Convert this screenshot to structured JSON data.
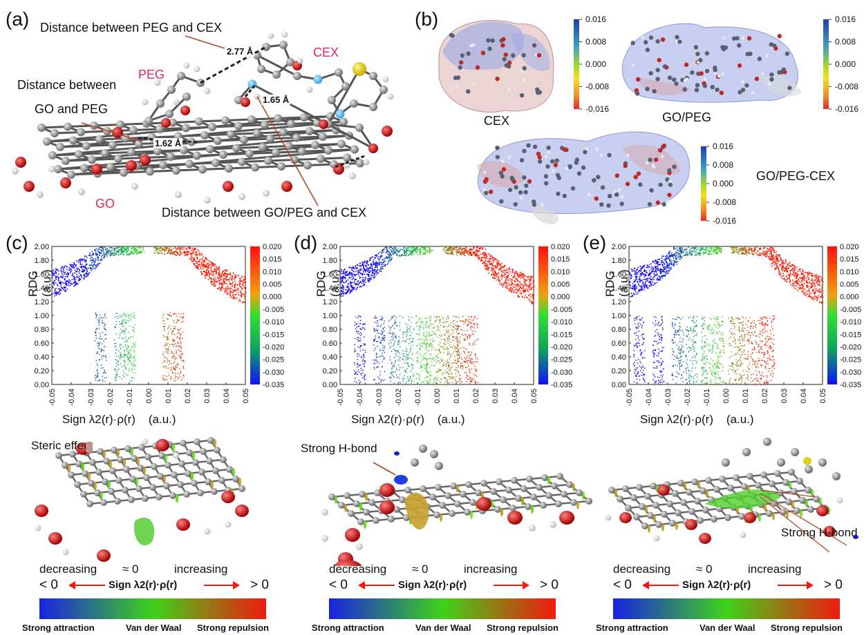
{
  "panel_a": {
    "letter": "(a)",
    "label_peg_cex": "Distance between PEG and CEX",
    "label_go_peg_1": "Distance between",
    "label_go_peg_2": "GO and PEG",
    "label_gopeg_cex": "Distance between GO/PEG and CEX",
    "mol_peg": "PEG",
    "mol_cex": "CEX",
    "mol_go": "GO",
    "d1": "2.77 Å",
    "d2": "1.65 Å",
    "d3": "1.62 Å"
  },
  "panel_b": {
    "letter": "(b)",
    "cex": "CEX",
    "gopeg": "GO/PEG",
    "gopegcex": "GO/PEG-CEX",
    "esp_ticks": [
      "0.016",
      "0.008",
      "0.000",
      "-0.008",
      "-0.016"
    ]
  },
  "rdg": {
    "ylabel": "RDG (a.u.)",
    "xlabel": "Sign λ2(r)·ρ(r)    (a.u.)",
    "yticks": [
      "2.00",
      "1.80",
      "1.60",
      "1.40",
      "1.20",
      "1.00",
      "0.80",
      "0.60",
      "0.40",
      "0.20",
      "0.00"
    ],
    "xticks": [
      "-0.05",
      "-0.04",
      "-0.03",
      "-0.02",
      "-0.01",
      "0.00",
      "0.01",
      "0.02",
      "0.03",
      "0.04",
      "0.05"
    ],
    "cbar_ticks": [
      "0.020",
      "0.015",
      "0.010",
      "0.005",
      "0.000",
      "-0.005",
      "-0.010",
      "-0.015",
      "-0.020",
      "-0.025",
      "-0.030",
      "-0.035"
    ],
    "panels": [
      {
        "letter": "(c)"
      },
      {
        "letter": "(d)"
      },
      {
        "letter": "(e)"
      }
    ]
  },
  "nci": {
    "steric": "Steric effect",
    "hbond": "Strong H-bond",
    "decreasing": "decreasing",
    "approx": "≈ 0",
    "increasing": "increasing",
    "lt": "< 0",
    "gt": "> 0",
    "sign": "Sign λ2(r)·ρ(r)",
    "attraction": "Strong attraction",
    "vdw": "Van der Waal",
    "repulsion": "Strong repulsion"
  },
  "colors": {
    "blue": "#1a22e0",
    "green": "#3fd21a",
    "red": "#f01a10",
    "pink": "#e8245b",
    "arrow": "#b5482a"
  }
}
